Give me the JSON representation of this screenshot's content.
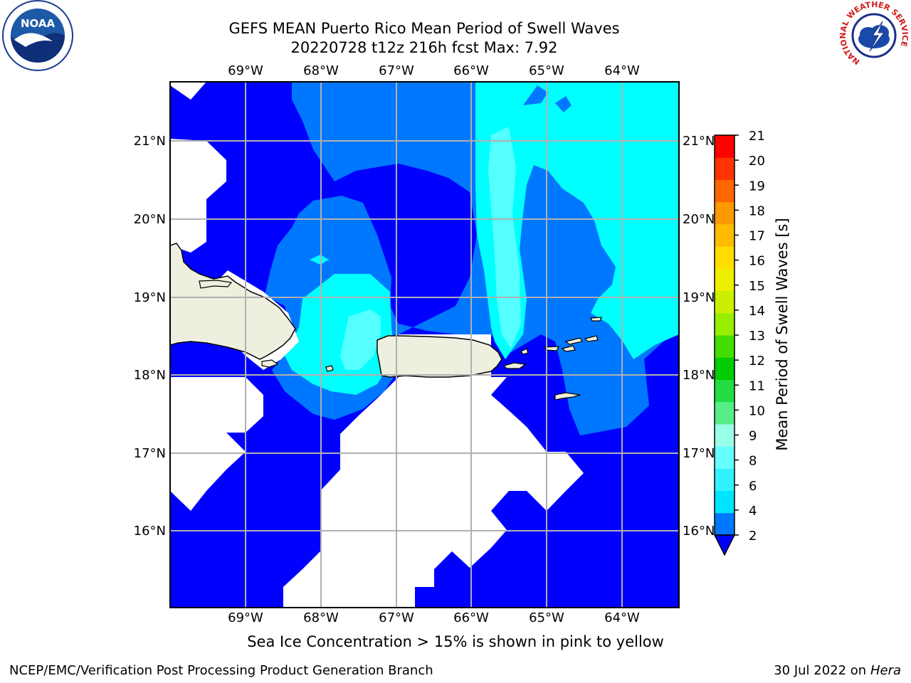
{
  "header": {
    "title_line1": "GEFS MEAN Puerto Rico Mean Period of Swell Waves",
    "title_line2": "20220728 t12z 216h fcst   Max: 7.92"
  },
  "logos": {
    "left": "noaa-logo",
    "right": "nws-logo",
    "left_text": "NOAA",
    "right_ring_text": "NATIONAL WEATHER SERVICE"
  },
  "map": {
    "lon_labels": [
      "69°W",
      "68°W",
      "67°W",
      "66°W",
      "65°W",
      "64°W"
    ],
    "lat_labels": [
      "21°N",
      "20°N",
      "19°N",
      "18°N",
      "17°N",
      "16°N"
    ],
    "lon_range": [
      -70,
      -63.25
    ],
    "lat_range": [
      15,
      21.75
    ],
    "land_color": "#efefdf",
    "no_data_color": "#ffffff"
  },
  "colorbar": {
    "label": "Mean Period of Swell Waves [s]",
    "ticks": [
      "2",
      "4",
      "6",
      "8",
      "9",
      "10",
      "11",
      "12",
      "13",
      "14",
      "15",
      "16",
      "17",
      "18",
      "19",
      "20",
      "21"
    ],
    "colors": [
      "#0077ff",
      "#00e5ff",
      "#33f2ff",
      "#66ffff",
      "#99ffe6",
      "#55ee88",
      "#22dd44",
      "#00cc00",
      "#44dd00",
      "#99ee00",
      "#ccee00",
      "#eeee00",
      "#ffdd00",
      "#ffbb00",
      "#ff9900",
      "#ff6600",
      "#ff3300",
      "#ff0000"
    ],
    "under_color": "#0000ff",
    "fill_levels": {
      "below_2": "#0000ff",
      "2_4": "#0077ff",
      "4_6": "#00ffff",
      "6_8": "#55ffff"
    }
  },
  "footnote": "Sea Ice Concentration > 15% is shown in pink to yellow",
  "footer": {
    "left": "NCEP/EMC/Verification Post Processing Product Generation Branch",
    "right_date": "30 Jul 2022 on",
    "right_host": "Hera"
  }
}
